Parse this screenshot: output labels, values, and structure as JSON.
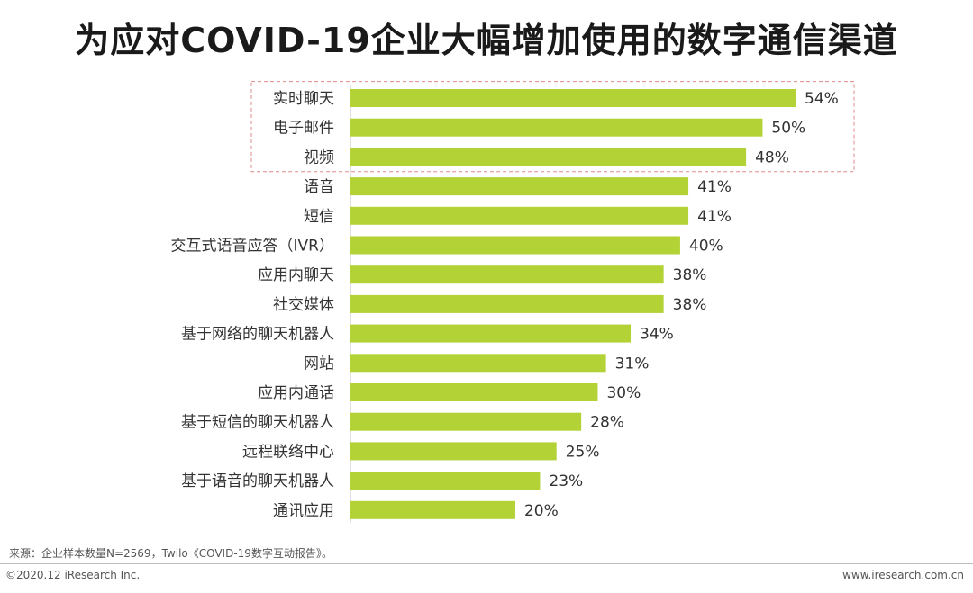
{
  "page": {
    "source_note": "来源：企业样本数量N=2569，Twilo《COVID-19数字互动报告》。",
    "copyright": "©2020.12 iResearch Inc.",
    "website": "www.iresearch.com.cn"
  },
  "colors": {
    "bar": "#b2d235",
    "highlight_border": "#e08a8a"
  },
  "chart_data": {
    "type": "bar",
    "orientation": "horizontal",
    "title": "为应对COVID-19企业大幅增加使用的数字通信渠道",
    "categories": [
      "实时聊天",
      "电子邮件",
      "视频",
      "语音",
      "短信",
      "交互式语音应答（IVR）",
      "应用内聊天",
      "社交媒体",
      "基于网络的聊天机器人",
      "网站",
      "应用内通话",
      "基于短信的聊天机器人",
      "远程联络中心",
      "基于语音的聊天机器人",
      "通讯应用"
    ],
    "values": [
      54,
      50,
      48,
      41,
      41,
      40,
      38,
      38,
      34,
      31,
      30,
      28,
      25,
      23,
      20
    ],
    "value_labels": [
      "54%",
      "50%",
      "48%",
      "41%",
      "41%",
      "40%",
      "38%",
      "38%",
      "34%",
      "31%",
      "30%",
      "28%",
      "25%",
      "23%",
      "20%"
    ],
    "unit": "%",
    "xlim": [
      0,
      54
    ],
    "highlighted_categories": [
      "实时聊天",
      "电子邮件",
      "视频"
    ],
    "xlabel": "",
    "ylabel": ""
  }
}
